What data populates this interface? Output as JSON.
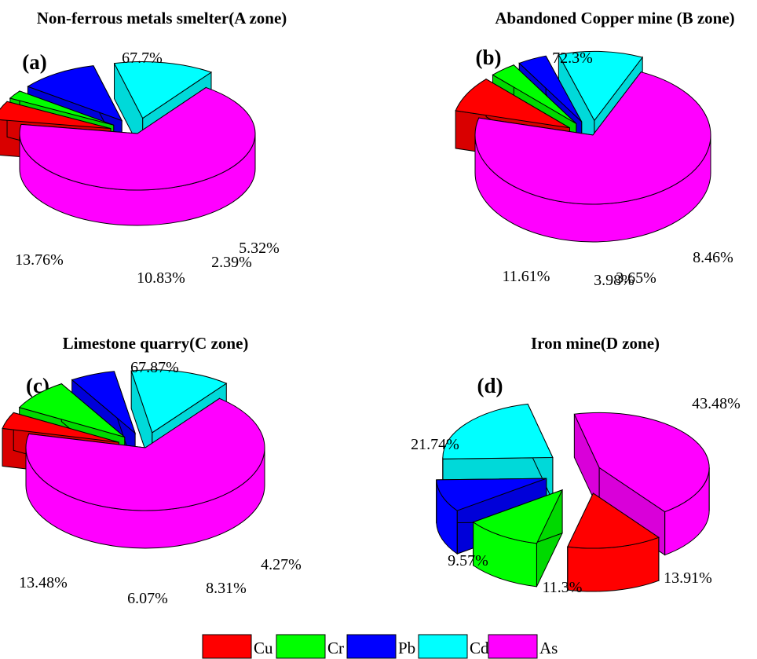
{
  "chart_data": [
    {
      "type": "pie",
      "panel": "(a)",
      "title": "Non-ferrous metals smelter(A zone)",
      "slices": [
        {
          "name": "As",
          "value": 67.7,
          "label": "67.7%"
        },
        {
          "name": "Cu",
          "value": 5.32,
          "label": "5.32%"
        },
        {
          "name": "Cr",
          "value": 2.39,
          "label": "2.39%"
        },
        {
          "name": "Pb",
          "value": 10.83,
          "label": "10.83%"
        },
        {
          "name": "Cd",
          "value": 13.76,
          "label": "13.76%"
        }
      ]
    },
    {
      "type": "pie",
      "panel": "(b)",
      "title": "Abandoned Copper mine (B zone)",
      "slices": [
        {
          "name": "As",
          "value": 72.3,
          "label": "72.3%"
        },
        {
          "name": "Cu",
          "value": 8.46,
          "label": "8.46%"
        },
        {
          "name": "Cr",
          "value": 3.65,
          "label": "3.65%"
        },
        {
          "name": "Pb",
          "value": 3.98,
          "label": "3.98%"
        },
        {
          "name": "Cd",
          "value": 11.61,
          "label": "11.61%"
        }
      ]
    },
    {
      "type": "pie",
      "panel": "(c)",
      "title": "Limestone quarry(C zone)",
      "slices": [
        {
          "name": "As",
          "value": 67.87,
          "label": "67.87%"
        },
        {
          "name": "Cu",
          "value": 4.27,
          "label": "4.27%"
        },
        {
          "name": "Cr",
          "value": 8.31,
          "label": "8.31%"
        },
        {
          "name": "Pb",
          "value": 6.07,
          "label": "6.07%"
        },
        {
          "name": "Cd",
          "value": 13.48,
          "label": "13.48%"
        }
      ]
    },
    {
      "type": "pie",
      "panel": "(d)",
      "title": "Iron mine(D zone)",
      "slices": [
        {
          "name": "As",
          "value": 43.48,
          "label": "43.48%"
        },
        {
          "name": "Cu",
          "value": 13.91,
          "label": "13.91%"
        },
        {
          "name": "Cr",
          "value": 11.3,
          "label": "11.3%"
        },
        {
          "name": "Pb",
          "value": 9.57,
          "label": "9.57%"
        },
        {
          "name": "Cd",
          "value": 21.74,
          "label": "21.74%"
        }
      ]
    }
  ],
  "legend": [
    {
      "name": "Cu",
      "color": "#ff0000"
    },
    {
      "name": "Cr",
      "color": "#00ff00"
    },
    {
      "name": "Pb",
      "color": "#0000ff"
    },
    {
      "name": "Cd",
      "color": "#00ffff"
    },
    {
      "name": "As",
      "color": "#ff00ff"
    }
  ],
  "legend_position": "bottom"
}
